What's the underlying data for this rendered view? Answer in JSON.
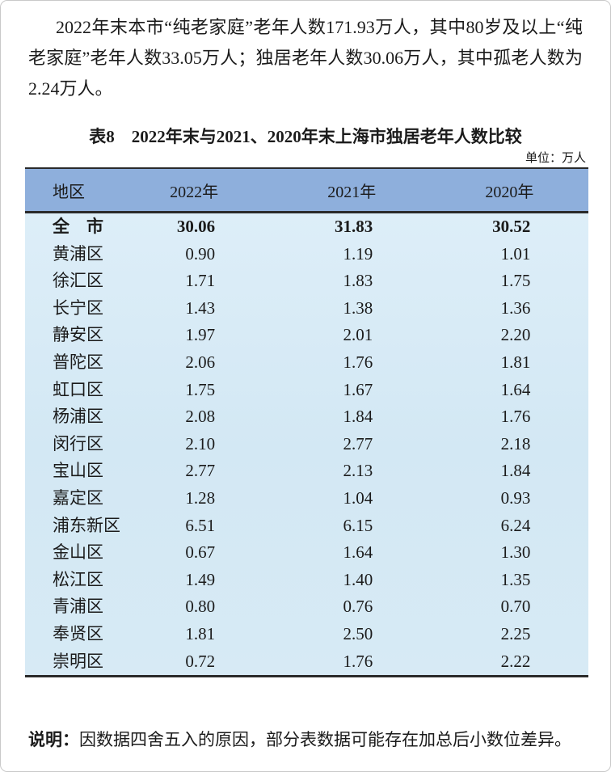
{
  "intro": {
    "text": "2022年末本市“纯老家庭”老年人数171.93万人，其中80岁及以上“纯老家庭”老年人数33.05万人；独居老年人数30.06万人，其中孤老人数为2.24万人。"
  },
  "table": {
    "title": "表8　2022年末与2021、2020年末上海市独居老年人数比较",
    "unit": "单位：万人",
    "columns": [
      "地区",
      "2022年",
      "2021年",
      "2020年"
    ],
    "rows": [
      {
        "region": "全　市",
        "values": [
          "30.06",
          "31.83",
          "30.52"
        ],
        "bold": true
      },
      {
        "region": "黄浦区",
        "values": [
          "0.90",
          "1.19",
          "1.01"
        ],
        "bold": false
      },
      {
        "region": "徐汇区",
        "values": [
          "1.71",
          "1.83",
          "1.75"
        ],
        "bold": false
      },
      {
        "region": "长宁区",
        "values": [
          "1.43",
          "1.38",
          "1.36"
        ],
        "bold": false
      },
      {
        "region": "静安区",
        "values": [
          "1.97",
          "2.01",
          "2.20"
        ],
        "bold": false
      },
      {
        "region": "普陀区",
        "values": [
          "2.06",
          "1.76",
          "1.81"
        ],
        "bold": false
      },
      {
        "region": "虹口区",
        "values": [
          "1.75",
          "1.67",
          "1.64"
        ],
        "bold": false
      },
      {
        "region": "杨浦区",
        "values": [
          "2.08",
          "1.84",
          "1.76"
        ],
        "bold": false
      },
      {
        "region": "闵行区",
        "values": [
          "2.10",
          "2.77",
          "2.18"
        ],
        "bold": false
      },
      {
        "region": "宝山区",
        "values": [
          "2.77",
          "2.13",
          "1.84"
        ],
        "bold": false
      },
      {
        "region": "嘉定区",
        "values": [
          "1.28",
          "1.04",
          "0.93"
        ],
        "bold": false
      },
      {
        "region": "浦东新区",
        "values": [
          "6.51",
          "6.15",
          "6.24"
        ],
        "bold": false
      },
      {
        "region": "金山区",
        "values": [
          "0.67",
          "1.64",
          "1.30"
        ],
        "bold": false
      },
      {
        "region": "松江区",
        "values": [
          "1.49",
          "1.40",
          "1.35"
        ],
        "bold": false
      },
      {
        "region": "青浦区",
        "values": [
          "0.80",
          "0.76",
          "0.70"
        ],
        "bold": false
      },
      {
        "region": "奉贤区",
        "values": [
          "1.81",
          "2.50",
          "2.25"
        ],
        "bold": false
      },
      {
        "region": "崇明区",
        "values": [
          "0.72",
          "1.76",
          "2.22"
        ],
        "bold": false
      }
    ]
  },
  "note": {
    "label": "说明：",
    "text": "因数据四舍五入的原因，部分表数据可能存在加总后小数位差异。"
  },
  "colors": {
    "header_bg": "#8EAFDC",
    "body_bg_top": "#DFEFF9",
    "body_bg_bottom": "#D3E8F4",
    "table_border": "#2A2A2A",
    "page_border": "#C9C9C9"
  }
}
